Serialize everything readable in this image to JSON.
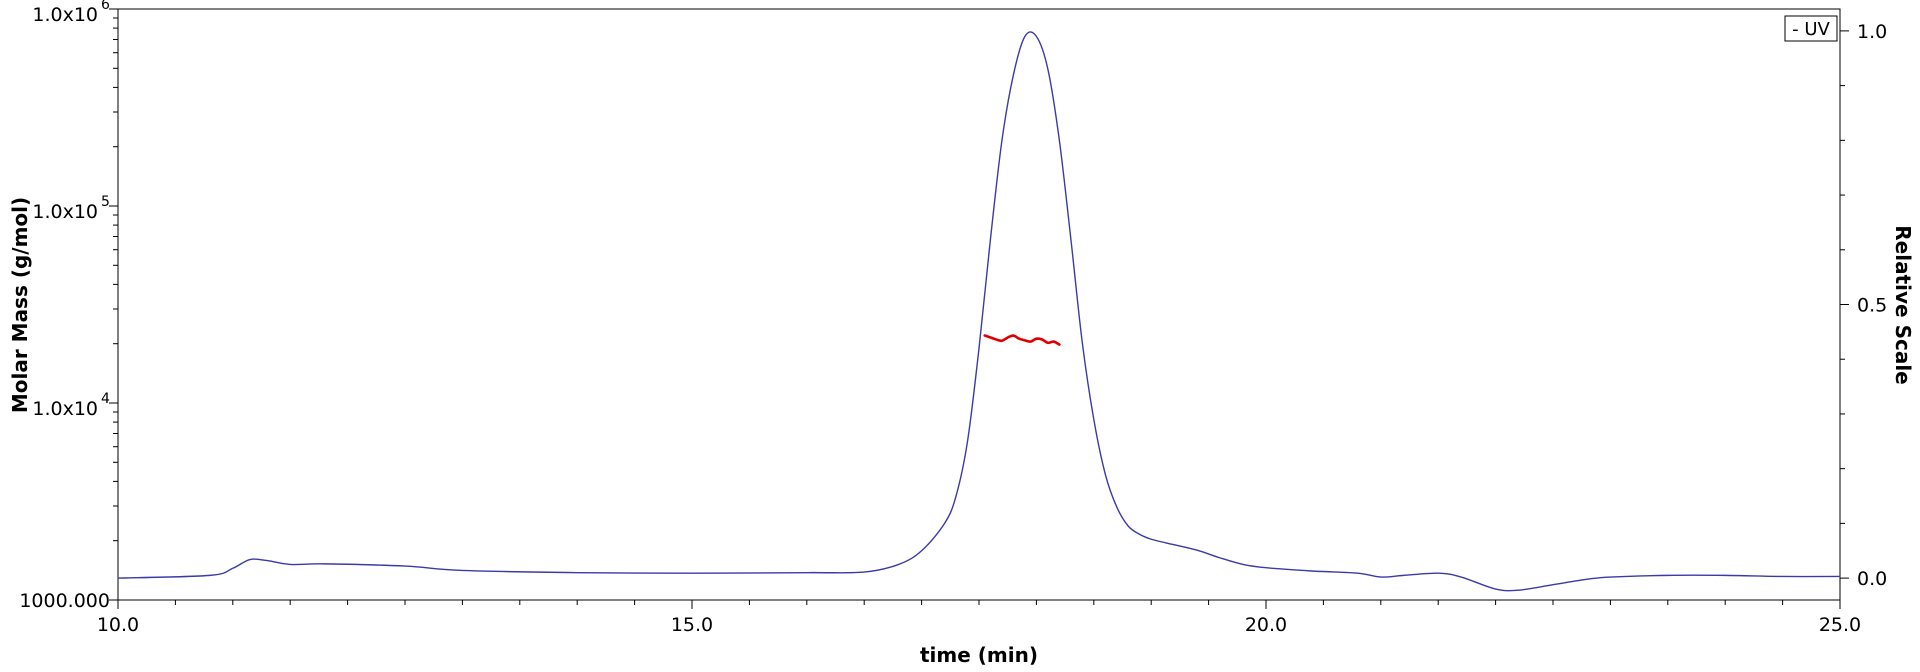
{
  "chart_data": {
    "type": "line",
    "title": "",
    "xlabel": "time (min)",
    "ylabel_left": "Molar Mass (g/mol)",
    "ylabel_right": "Relative Scale",
    "xlim": [
      10.0,
      25.0
    ],
    "ylim_left": [
      1000,
      1000000
    ],
    "ylim_right": [
      -0.04,
      1.04
    ],
    "left_scale": "log",
    "grid": false,
    "x_ticks": [
      {
        "value": 10,
        "label": "10.0"
      },
      {
        "value": 15,
        "label": "15.0"
      },
      {
        "value": 20,
        "label": "20.0"
      },
      {
        "value": 25,
        "label": "25.0"
      }
    ],
    "left_ticks": [
      {
        "value": 1000000,
        "base": "1.0x10",
        "exp": "6"
      },
      {
        "value": 100000,
        "base": "1.0x10",
        "exp": "5"
      },
      {
        "value": 10000,
        "base": "1.0x10",
        "exp": "4"
      },
      {
        "value": 1000,
        "base": "1000.000",
        "exp": ""
      }
    ],
    "right_ticks": [
      {
        "value": 1.0,
        "label": "1.0"
      },
      {
        "value": 0.5,
        "label": "0.5"
      },
      {
        "value": 0.0,
        "label": "0.0"
      }
    ],
    "legend": {
      "position": "top-right",
      "entries": [
        {
          "label": "- UV",
          "color": "#3a3aa8"
        }
      ]
    },
    "series": [
      {
        "name": "UV",
        "axis": "right",
        "color": "#3a3aa8",
        "x": [
          10.0,
          10.8,
          11.0,
          11.15,
          11.3,
          11.5,
          11.8,
          12.5,
          13.0,
          14.0,
          15.0,
          16.0,
          16.5,
          16.8,
          17.0,
          17.2,
          17.3,
          17.4,
          17.5,
          17.6,
          17.7,
          17.8,
          17.9,
          18.0,
          18.1,
          18.2,
          18.3,
          18.4,
          18.5,
          18.6,
          18.7,
          18.8,
          18.9,
          19.0,
          19.2,
          19.4,
          19.6,
          19.8,
          20.0,
          20.4,
          20.8,
          21.0,
          21.2,
          21.5,
          21.7,
          22.0,
          22.2,
          22.5,
          22.8,
          23.0,
          23.5,
          24.0,
          24.5,
          25.0
        ],
        "values": [
          0.0,
          0.005,
          0.018,
          0.034,
          0.032,
          0.025,
          0.026,
          0.022,
          0.014,
          0.01,
          0.009,
          0.01,
          0.011,
          0.025,
          0.05,
          0.1,
          0.15,
          0.25,
          0.42,
          0.62,
          0.8,
          0.92,
          0.99,
          0.99,
          0.93,
          0.8,
          0.62,
          0.43,
          0.29,
          0.19,
          0.13,
          0.095,
          0.08,
          0.071,
          0.061,
          0.051,
          0.037,
          0.025,
          0.019,
          0.013,
          0.009,
          0.002,
          0.005,
          0.009,
          0.002,
          -0.02,
          -0.022,
          -0.012,
          -0.002,
          0.002,
          0.005,
          0.005,
          0.003,
          0.003
        ]
      },
      {
        "name": "Molar Mass",
        "axis": "left",
        "color": "#e00000",
        "x": [
          17.55,
          17.6,
          17.65,
          17.7,
          17.75,
          17.8,
          17.85,
          17.9,
          17.95,
          18.0,
          18.05,
          18.1,
          18.15,
          18.2
        ],
        "values": [
          22000,
          21500,
          21000,
          20700,
          21500,
          22000,
          21200,
          20800,
          20500,
          21200,
          21000,
          20200,
          20500,
          19800
        ]
      }
    ]
  }
}
